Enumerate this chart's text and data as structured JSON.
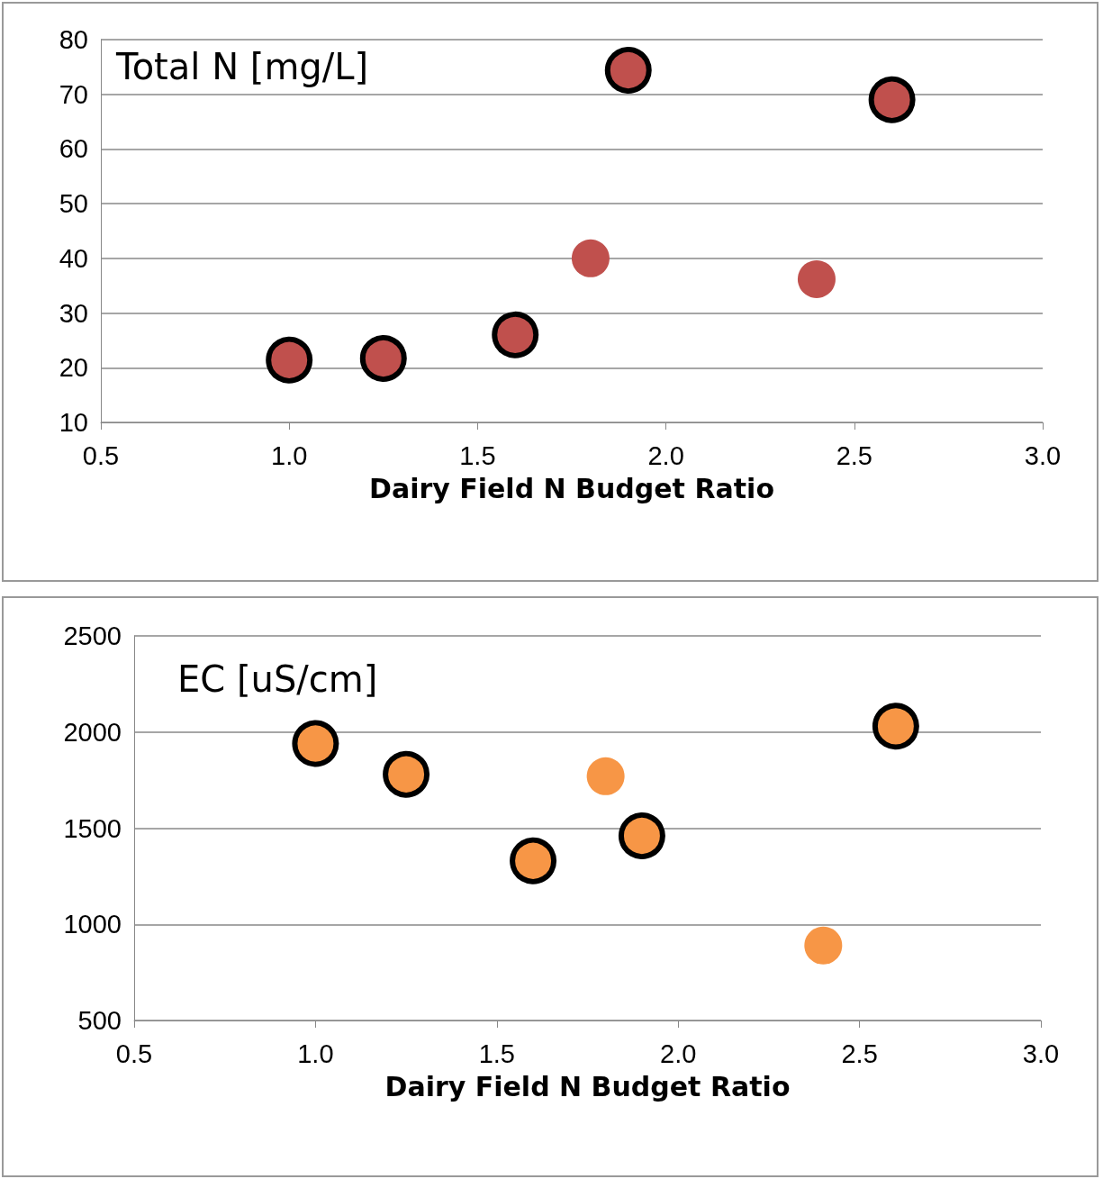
{
  "chart_data": [
    {
      "type": "scatter",
      "title": "Total N [mg/L]",
      "xlabel": "Dairy Field N Budget Ratio",
      "xlim": [
        0.5,
        3.0
      ],
      "xticks": [
        {
          "value": 0.5,
          "label": "0.5"
        },
        {
          "value": 1,
          "label": "1.0"
        },
        {
          "value": 1.5,
          "label": "1.5"
        },
        {
          "value": 2,
          "label": "2.0"
        },
        {
          "value": 2.5,
          "label": "2.5"
        },
        {
          "value": 3,
          "label": "3.0"
        }
      ],
      "ylim": [
        10,
        80
      ],
      "yticks": [
        10,
        20,
        30,
        40,
        50,
        60,
        70,
        80
      ],
      "grid": "y",
      "marker": "circle",
      "series": [
        {
          "color": "#c0504d",
          "x": [
            1.0,
            1.25,
            1.6,
            1.9,
            2.6
          ],
          "values": [
            21.4,
            21.7,
            26.0,
            74.4,
            69.0
          ]
        },
        {
          "color": "#c0504d",
          "x": [
            1.8,
            2.4
          ],
          "values": [
            40.0,
            36.2
          ]
        }
      ]
    },
    {
      "type": "scatter",
      "title": "EC [uS/cm]",
      "xlabel": "Dairy Field N Budget Ratio",
      "xlim": [
        0.5,
        3.0
      ],
      "xticks": [
        {
          "value": 0.5,
          "label": "0.5"
        },
        {
          "value": 1,
          "label": "1.0"
        },
        {
          "value": 1.5,
          "label": "1.5"
        },
        {
          "value": 2,
          "label": "2.0"
        },
        {
          "value": 2.5,
          "label": "2.5"
        },
        {
          "value": 3,
          "label": "3.0"
        }
      ],
      "ylim": [
        500,
        2500
      ],
      "yticks": [
        500,
        1000,
        1500,
        2000,
        2500
      ],
      "grid": "y",
      "marker": "circle",
      "series": [
        {
          "color": "#f79646",
          "x": [
            1.0,
            1.25,
            1.6,
            1.9,
            2.6
          ],
          "values": [
            1940,
            1780,
            1330,
            1460,
            2030
          ]
        },
        {
          "color": "#f79646",
          "x": [
            1.8,
            2.4
          ],
          "values": [
            1770,
            890
          ]
        }
      ]
    }
  ]
}
